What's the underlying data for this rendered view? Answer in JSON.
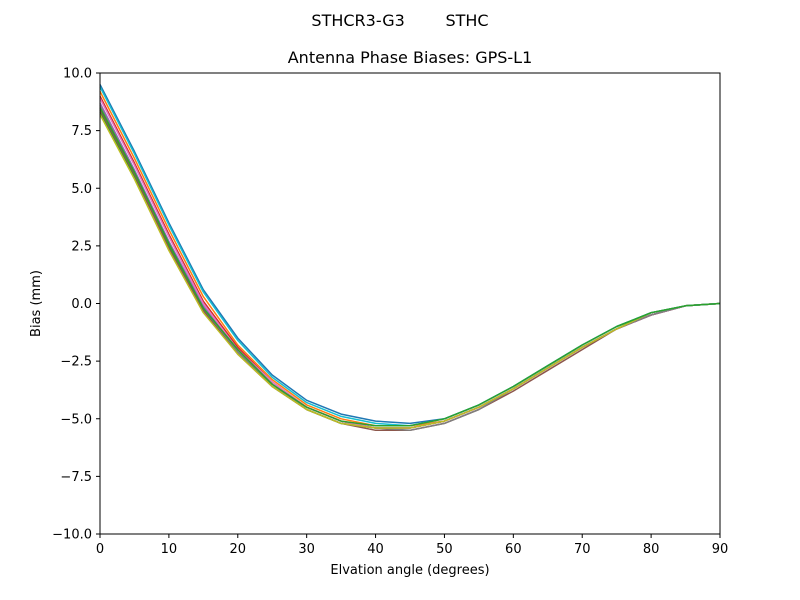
{
  "chart_data": {
    "type": "line",
    "suptitle": "STHCR3-G3        STHC",
    "title": "Antenna Phase Biases: GPS-L1",
    "xlabel": "Elvation angle (degrees)",
    "ylabel": "Bias (mm)",
    "xlim": [
      0,
      90
    ],
    "ylim": [
      -10,
      10
    ],
    "xticks": [
      0,
      10,
      20,
      30,
      40,
      50,
      60,
      70,
      80,
      90
    ],
    "yticks": [
      10.0,
      7.5,
      5.0,
      2.5,
      0.0,
      -2.5,
      -5.0,
      -7.5,
      -10.0
    ],
    "xtick_labels": [
      "0",
      "10",
      "20",
      "30",
      "40",
      "50",
      "60",
      "70",
      "80",
      "90"
    ],
    "ytick_labels": [
      "10.0",
      "7.5",
      "5.0",
      "2.5",
      "0.0",
      "−2.5",
      "−5.0",
      "−7.5",
      "−10.0"
    ],
    "grid": false,
    "legend": "none",
    "x": [
      0,
      5,
      10,
      15,
      20,
      25,
      30,
      35,
      40,
      45,
      50,
      55,
      60,
      65,
      70,
      75,
      80,
      85,
      90
    ],
    "series": [
      {
        "color": "#1f77b4",
        "values": [
          9.5,
          6.6,
          3.5,
          0.6,
          -1.5,
          -3.1,
          -4.2,
          -4.8,
          -5.1,
          -5.2,
          -5.0,
          -4.4,
          -3.6,
          -2.7,
          -1.8,
          -1.0,
          -0.4,
          -0.1,
          0.0
        ]
      },
      {
        "color": "#ff7f0e",
        "values": [
          9.2,
          6.3,
          3.2,
          0.3,
          -1.8,
          -3.3,
          -4.4,
          -5.0,
          -5.3,
          -5.3,
          -5.1,
          -4.5,
          -3.7,
          -2.8,
          -1.9,
          -1.1,
          -0.5,
          -0.1,
          0.0
        ]
      },
      {
        "color": "#2ca02c",
        "values": [
          8.3,
          5.5,
          2.5,
          -0.3,
          -2.1,
          -3.6,
          -4.6,
          -5.2,
          -5.4,
          -5.4,
          -5.1,
          -4.5,
          -3.7,
          -2.8,
          -1.9,
          -1.1,
          -0.4,
          -0.1,
          0.0
        ]
      },
      {
        "color": "#d62728",
        "values": [
          9.0,
          6.1,
          3.0,
          0.1,
          -1.9,
          -3.4,
          -4.5,
          -5.1,
          -5.4,
          -5.4,
          -5.1,
          -4.5,
          -3.7,
          -2.8,
          -1.9,
          -1.1,
          -0.5,
          -0.1,
          0.0
        ]
      },
      {
        "color": "#9467bd",
        "values": [
          8.7,
          5.8,
          2.7,
          -0.1,
          -2.0,
          -3.5,
          -4.5,
          -5.1,
          -5.4,
          -5.4,
          -5.1,
          -4.5,
          -3.7,
          -2.8,
          -1.9,
          -1.1,
          -0.5,
          -0.1,
          0.0
        ]
      },
      {
        "color": "#8c564b",
        "values": [
          8.4,
          5.6,
          2.4,
          -0.3,
          -2.2,
          -3.6,
          -4.6,
          -5.2,
          -5.5,
          -5.5,
          -5.2,
          -4.6,
          -3.8,
          -2.9,
          -2.0,
          -1.1,
          -0.5,
          -0.1,
          0.0
        ]
      },
      {
        "color": "#e377c2",
        "values": [
          8.9,
          6.0,
          2.9,
          0.0,
          -2.0,
          -3.4,
          -4.5,
          -5.1,
          -5.4,
          -5.4,
          -5.1,
          -4.5,
          -3.7,
          -2.8,
          -1.9,
          -1.1,
          -0.5,
          -0.1,
          0.0
        ]
      },
      {
        "color": "#7f7f7f",
        "values": [
          8.6,
          5.7,
          2.6,
          -0.2,
          -2.1,
          -3.5,
          -4.6,
          -5.2,
          -5.4,
          -5.5,
          -5.2,
          -4.6,
          -3.7,
          -2.8,
          -1.9,
          -1.1,
          -0.5,
          -0.1,
          0.0
        ]
      },
      {
        "color": "#bcbd22",
        "values": [
          8.2,
          5.4,
          2.3,
          -0.4,
          -2.2,
          -3.6,
          -4.6,
          -5.2,
          -5.4,
          -5.4,
          -5.1,
          -4.5,
          -3.7,
          -2.8,
          -1.9,
          -1.1,
          -0.4,
          -0.1,
          0.0
        ]
      },
      {
        "color": "#17becf",
        "values": [
          9.4,
          6.5,
          3.4,
          0.5,
          -1.6,
          -3.2,
          -4.3,
          -4.9,
          -5.2,
          -5.3,
          -5.0,
          -4.4,
          -3.6,
          -2.7,
          -1.8,
          -1.0,
          -0.4,
          -0.1,
          0.0
        ]
      },
      {
        "color": "#2ca02c",
        "values": [
          8.5,
          5.7,
          2.6,
          -0.2,
          -2.0,
          -3.5,
          -4.5,
          -5.1,
          -5.3,
          -5.3,
          -5.0,
          -4.4,
          -3.6,
          -2.7,
          -1.8,
          -1.0,
          -0.4,
          -0.1,
          0.0
        ]
      }
    ]
  }
}
